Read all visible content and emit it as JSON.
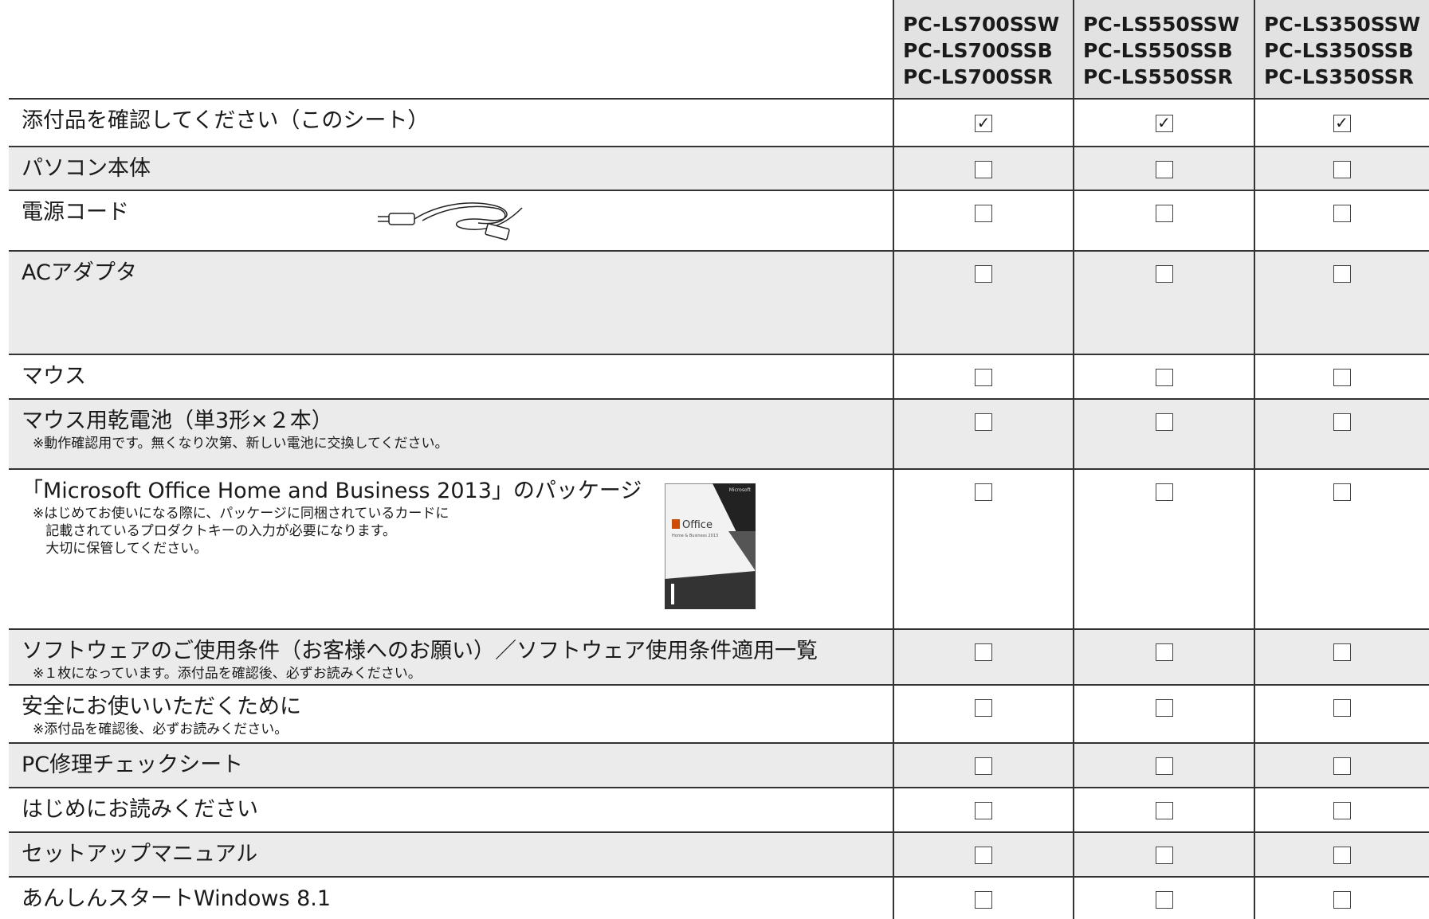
{
  "header": {
    "columns": [
      [
        "PC-LS700SSW",
        "PC-LS700SSB",
        "PC-LS700SSR"
      ],
      [
        "PC-LS550SSW",
        "PC-LS550SSB",
        "PC-LS550SSR"
      ],
      [
        "PC-LS350SSW",
        "PC-LS350SSB",
        "PC-LS350SSR"
      ]
    ]
  },
  "check_mark": "✓",
  "rows": [
    {
      "label": "添付品を確認してください（このシート）",
      "checked": true
    },
    {
      "label": "パソコン本体"
    },
    {
      "label": "電源コード"
    },
    {
      "label": "ACアダプタ"
    },
    {
      "label": "マウス"
    },
    {
      "label": "マウス用乾電池（単3形×２本）",
      "notes": [
        "※動作確認用です。無くなり次第、新しい電池に交換してください。"
      ]
    },
    {
      "label": "「Microsoft Office Home and Business 2013」のパッケージ",
      "notes": [
        "※はじめてお使いになる際に、パッケージに同梱されているカードに",
        "   記載されているプロダクトキーの入力が必要になります。",
        "   大切に保管してください。"
      ]
    },
    {
      "label": "ソフトウェアのご使用条件（お客様へのお願い）／ソフトウェア使用条件適用一覧",
      "notes": [
        "※１枚になっています。添付品を確認後、必ずお読みください。"
      ]
    },
    {
      "label": "安全にお使いいただくために",
      "notes": [
        "※添付品を確認後、必ずお読みください。"
      ]
    },
    {
      "label": "PC修理チェックシート"
    },
    {
      "label": "はじめにお読みください"
    },
    {
      "label": "セットアップマニュアル"
    },
    {
      "label": "あんしんスタートWindows 8.1"
    }
  ],
  "office_box": {
    "brand": "Microsoft",
    "product": "Office",
    "edition": "Home & Business 2013"
  }
}
